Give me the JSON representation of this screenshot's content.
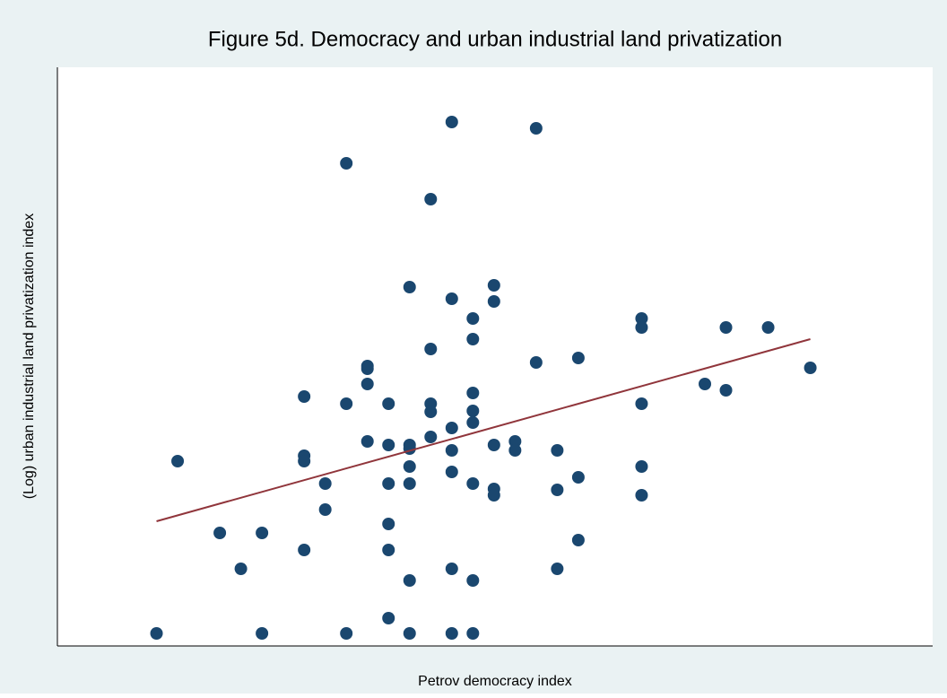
{
  "chart_data": {
    "type": "scatter",
    "title": "Figure 5d. Democracy and urban industrial land privatization",
    "x_label": "Petrov democracy index",
    "y_label": "(Log) urban industrial land privatization index",
    "xlim": [
      12.3,
      53.8
    ],
    "ylim": [
      0,
      6.45
    ],
    "color": "#1a476f",
    "x": [
      17,
      18,
      20,
      21,
      22,
      22,
      24,
      24,
      24,
      24,
      25,
      25,
      26,
      26,
      26,
      27,
      27,
      27,
      27,
      28,
      28,
      28,
      28,
      28,
      28,
      29,
      29,
      29,
      29,
      29,
      29,
      29,
      30,
      30,
      30,
      30,
      30,
      31,
      31,
      31,
      31,
      31,
      31,
      31,
      32,
      32,
      32,
      32,
      32,
      32,
      32,
      32,
      33,
      33,
      33,
      33,
      33,
      34,
      34,
      35,
      35,
      36,
      36,
      36,
      37,
      37,
      37,
      40,
      40,
      40,
      40,
      40,
      43,
      44,
      44,
      46,
      48
    ],
    "values": [
      0.14,
      2.06,
      1.26,
      0.86,
      1.26,
      0.14,
      2.78,
      2.12,
      2.06,
      1.07,
      1.81,
      1.52,
      5.38,
      2.7,
      0.14,
      3.12,
      3.09,
      2.92,
      2.28,
      2.7,
      2.24,
      1.81,
      1.36,
      1.07,
      0.31,
      4.0,
      2.24,
      2.2,
      2.0,
      1.81,
      0.73,
      0.14,
      4.98,
      3.31,
      2.7,
      2.61,
      2.33,
      5.84,
      3.87,
      2.43,
      2.18,
      1.94,
      0.86,
      0.14,
      3.65,
      3.42,
      2.82,
      2.62,
      2.49,
      1.81,
      0.73,
      0.14,
      4.02,
      3.84,
      2.24,
      1.75,
      1.68,
      2.28,
      2.18,
      5.77,
      3.16,
      2.18,
      1.74,
      0.86,
      3.21,
      1.88,
      1.18,
      3.65,
      3.55,
      2.7,
      2.0,
      1.68,
      2.92,
      3.55,
      2.85,
      3.55,
      3.1
    ],
    "fit_line": {
      "color": "#90353b",
      "x": [
        17,
        48
      ],
      "values": [
        1.39,
        3.42
      ]
    }
  }
}
